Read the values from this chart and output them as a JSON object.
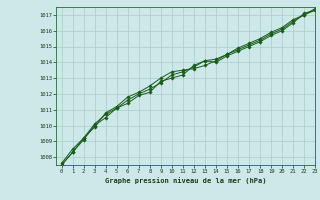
{
  "title": "Graphe pression niveau de la mer (hPa)",
  "bg_color": "#cce8e8",
  "grid_color": "#aacccc",
  "line_color": "#1a5c1a",
  "marker_color": "#1a5c1a",
  "xlim": [
    -0.5,
    23
  ],
  "ylim": [
    1007.5,
    1017.5
  ],
  "yticks": [
    1008,
    1009,
    1010,
    1011,
    1012,
    1013,
    1014,
    1015,
    1016,
    1017
  ],
  "xticks": [
    0,
    1,
    2,
    3,
    4,
    5,
    6,
    7,
    8,
    9,
    10,
    11,
    12,
    13,
    14,
    15,
    16,
    17,
    18,
    19,
    20,
    21,
    22,
    23
  ],
  "series1": [
    1007.5,
    1008.3,
    1009.1,
    1010.0,
    1010.5,
    1011.1,
    1011.4,
    1011.9,
    1012.1,
    1012.8,
    1013.0,
    1013.2,
    1013.8,
    1014.1,
    1014.0,
    1014.4,
    1014.7,
    1015.0,
    1015.3,
    1015.7,
    1016.0,
    1016.5,
    1017.1,
    1017.3
  ],
  "series2": [
    1007.5,
    1008.3,
    1009.2,
    1009.9,
    1010.8,
    1011.2,
    1011.8,
    1012.1,
    1012.5,
    1013.0,
    1013.4,
    1013.5,
    1013.6,
    1013.8,
    1014.1,
    1014.5,
    1014.9,
    1015.2,
    1015.5,
    1015.9,
    1016.2,
    1016.7,
    1017.0,
    1017.4
  ],
  "series3": [
    1007.6,
    1008.5,
    1009.2,
    1010.1,
    1010.7,
    1011.1,
    1011.6,
    1012.0,
    1012.3,
    1012.7,
    1013.2,
    1013.4,
    1013.7,
    1014.1,
    1014.2,
    1014.5,
    1014.8,
    1015.1,
    1015.4,
    1015.8,
    1016.1,
    1016.6,
    1017.0,
    1017.3
  ]
}
